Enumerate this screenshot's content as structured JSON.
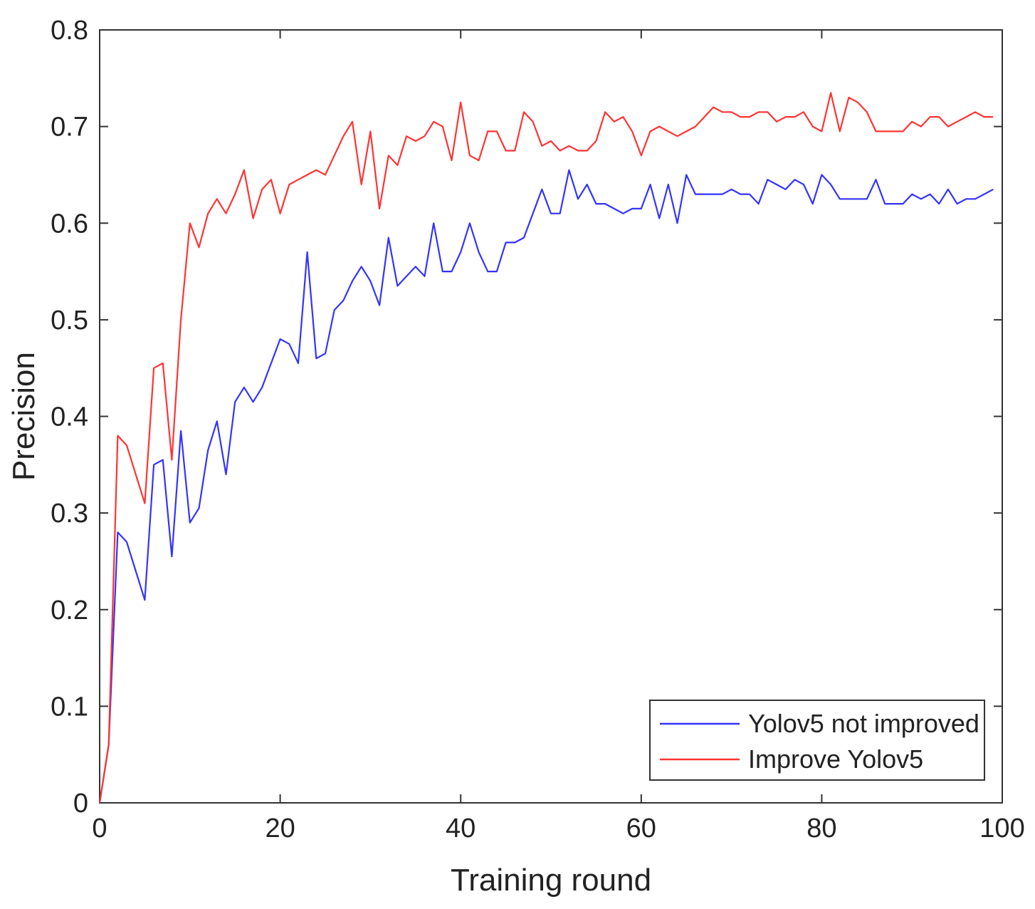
{
  "chart_data": {
    "type": "line",
    "title": "",
    "xlabel": "Training round",
    "ylabel": "Precision",
    "xlim": [
      0,
      100
    ],
    "ylim": [
      0,
      0.8
    ],
    "xticks": [
      0,
      20,
      40,
      60,
      80,
      100
    ],
    "xtick_labels": [
      "0",
      "20",
      "40",
      "60",
      "80",
      "100"
    ],
    "yticks": [
      0,
      0.1,
      0.2,
      0.3,
      0.4,
      0.5,
      0.6,
      0.7,
      0.8
    ],
    "ytick_labels": [
      "0",
      "0.1",
      "0.2",
      "0.3",
      "0.4",
      "0.5",
      "0.6",
      "0.7",
      "0.8"
    ],
    "grid": false,
    "legend_position": "bottom-right",
    "x": [
      0,
      1,
      2,
      3,
      4,
      5,
      6,
      7,
      8,
      9,
      10,
      11,
      12,
      13,
      14,
      15,
      16,
      17,
      18,
      19,
      20,
      21,
      22,
      23,
      24,
      25,
      26,
      27,
      28,
      29,
      30,
      31,
      32,
      33,
      34,
      35,
      36,
      37,
      38,
      39,
      40,
      41,
      42,
      43,
      44,
      45,
      46,
      47,
      48,
      49,
      50,
      51,
      52,
      53,
      54,
      55,
      56,
      57,
      58,
      59,
      60,
      61,
      62,
      63,
      64,
      65,
      66,
      67,
      68,
      69,
      70,
      71,
      72,
      73,
      74,
      75,
      76,
      77,
      78,
      79,
      80,
      81,
      82,
      83,
      84,
      85,
      86,
      87,
      88,
      89,
      90,
      91,
      92,
      93,
      94,
      95,
      96,
      97,
      98,
      99
    ],
    "series": [
      {
        "name": "Yolov5 not improved",
        "color": "#3333ff",
        "values": [
          0.0,
          0.06,
          0.28,
          0.27,
          0.24,
          0.21,
          0.35,
          0.355,
          0.255,
          0.385,
          0.29,
          0.305,
          0.365,
          0.395,
          0.34,
          0.415,
          0.43,
          0.415,
          0.43,
          0.455,
          0.48,
          0.475,
          0.455,
          0.57,
          0.46,
          0.465,
          0.51,
          0.52,
          0.54,
          0.555,
          0.54,
          0.515,
          0.585,
          0.535,
          0.545,
          0.555,
          0.545,
          0.6,
          0.55,
          0.55,
          0.57,
          0.6,
          0.57,
          0.55,
          0.55,
          0.58,
          0.58,
          0.585,
          0.61,
          0.635,
          0.61,
          0.61,
          0.655,
          0.625,
          0.64,
          0.62,
          0.62,
          0.615,
          0.61,
          0.615,
          0.615,
          0.64,
          0.605,
          0.64,
          0.6,
          0.65,
          0.63,
          0.63,
          0.63,
          0.63,
          0.635,
          0.63,
          0.63,
          0.62,
          0.645,
          0.64,
          0.635,
          0.645,
          0.64,
          0.62,
          0.65,
          0.64,
          0.625,
          0.625,
          0.625,
          0.625,
          0.645,
          0.62,
          0.62,
          0.62,
          0.63,
          0.625,
          0.63,
          0.62,
          0.635,
          0.62,
          0.625,
          0.625,
          0.63,
          0.635
        ]
      },
      {
        "name": "Improve Yolov5",
        "color": "#ff3333",
        "values": [
          0.0,
          0.06,
          0.38,
          0.37,
          0.34,
          0.31,
          0.45,
          0.455,
          0.355,
          0.5,
          0.6,
          0.575,
          0.61,
          0.625,
          0.61,
          0.63,
          0.655,
          0.605,
          0.635,
          0.645,
          0.61,
          0.64,
          0.645,
          0.65,
          0.655,
          0.65,
          0.67,
          0.69,
          0.705,
          0.64,
          0.695,
          0.615,
          0.67,
          0.66,
          0.69,
          0.685,
          0.69,
          0.705,
          0.7,
          0.665,
          0.725,
          0.67,
          0.665,
          0.695,
          0.695,
          0.675,
          0.675,
          0.715,
          0.705,
          0.68,
          0.685,
          0.675,
          0.68,
          0.675,
          0.675,
          0.685,
          0.715,
          0.705,
          0.71,
          0.695,
          0.67,
          0.695,
          0.7,
          0.695,
          0.69,
          0.695,
          0.7,
          0.71,
          0.72,
          0.715,
          0.715,
          0.71,
          0.71,
          0.715,
          0.715,
          0.705,
          0.71,
          0.71,
          0.715,
          0.7,
          0.695,
          0.735,
          0.695,
          0.73,
          0.725,
          0.715,
          0.695,
          0.695,
          0.695,
          0.695,
          0.705,
          0.7,
          0.71,
          0.71,
          0.7,
          0.705,
          0.71,
          0.715,
          0.71,
          0.71
        ]
      }
    ]
  }
}
